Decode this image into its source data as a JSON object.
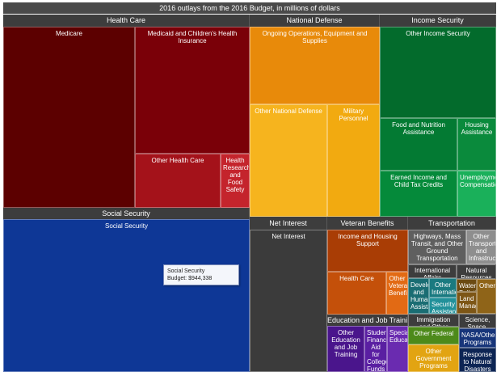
{
  "chart_data": {
    "type": "treemap",
    "title": "2016 outlays from the 2016 Budget, in millions of dollars",
    "categories": [
      {
        "name": "Health Care",
        "children": [
          "Medicare",
          "Medicaid and Children's Health Insurance",
          "Other Health Care",
          "Health Research and Food Safety"
        ]
      },
      {
        "name": "National Defense",
        "children": [
          "Ongoing Operations, Equipment and Supplies",
          "Other National Defense",
          "Military Personnel"
        ]
      },
      {
        "name": "Income Security",
        "children": [
          "Other Income Security",
          "Food and Nutrition Assistance",
          "Housing Assistance",
          "Earned Income and Child Tax Credits",
          "Unemployment Compensation"
        ]
      },
      {
        "name": "Social Security",
        "children": [
          "Social Security"
        ]
      },
      {
        "name": "Net Interest",
        "children": [
          "Net Interest"
        ]
      },
      {
        "name": "Veteran Benefits",
        "children": [
          "Income and Housing Support",
          "Health Care",
          "Other Veteran Benefits"
        ]
      },
      {
        "name": "Transportation",
        "children": [
          "Highways, Mass Transit, and Other Ground Transportation",
          "Other Transportation and Infrastructure"
        ]
      },
      {
        "name": "Education and Job Training",
        "children": [
          "Other Education and Job Training",
          "Student Financial Aid for College, Funds for School",
          "Special Education"
        ]
      },
      {
        "name": "International Affairs",
        "children": [
          "Development and Humanitarian Assistance",
          "Other International Affairs",
          "Security Assistance"
        ]
      },
      {
        "name": "Natural Resources and Environment",
        "children": [
          "Water, Pollution Control",
          "Land Management",
          "Other"
        ]
      },
      {
        "name": "Immigration and Other Federal Programs",
        "children": [
          "Immigration and Other Federal",
          "Other Government Programs"
        ]
      },
      {
        "name": "Science, Space, and Technology",
        "children": [
          "NASA/Other Programs",
          "Response to Natural Disasters"
        ]
      }
    ],
    "tooltip": {
      "label": "Social Security",
      "value_text": "Budget: $944,338",
      "value": 944338
    }
  },
  "tiles": {
    "medicare": "Medicare",
    "medicaid": "Medicaid and Children's Health Insurance",
    "other_health": "Other Health Care",
    "health_research": "Health Research and Food Safety",
    "ongoing_ops": "Ongoing Operations, Equipment and Supplies",
    "other_defense": "Other National Defense",
    "military_personnel": "Military Personnel",
    "other_income": "Other Income Security",
    "food_nutrition": "Food and Nutrition Assistance",
    "housing": "Housing Assistance",
    "eitc": "Earned Income and Child Tax Credits",
    "unemployment": "Unemployment Compensation",
    "social_security": "Social Security",
    "net_interest": "Net Interest",
    "vet_income": "Income and Housing Support",
    "vet_health": "Health Care",
    "vet_other": "Other Veteran Benefits",
    "highways": "Highways, Mass Transit, and Other Ground Transportation",
    "other_transport": "Other Transportation and Infrastructure",
    "intl_affairs": "International Affairs",
    "intl_dev": "Development and Humanitarian Assistance",
    "intl_other": "Other International Affairs",
    "intl_security": "Security Assistance",
    "natural_resources": "Natural Resources",
    "water": "Water, Pollution Control",
    "land": "Land Management",
    "nr_other": "Other",
    "edu_other": "Other Education and Job Training",
    "student_aid": "Student Financial Aid for College, Funds for School",
    "special_edu": "Special Education",
    "immigration": "Immigration and Other Federal",
    "imm_other_federal": "Other Federal",
    "imm_other_gov": "Other Government Programs",
    "science": "Science, Space, and Technology",
    "nasa": "NASA/Other Programs",
    "natural_disasters": "Response to Natural Disasters"
  },
  "headers": {
    "health_care": "Health Care",
    "national_defense": "National Defense",
    "income_security": "Income Security",
    "social_security": "Social Security",
    "net_interest": "Net Interest",
    "veteran_benefits": "Veteran Benefits",
    "transportation": "Transportation",
    "education": "Education and Job Training",
    "immigration": "Immigration and Other Federal Programs",
    "science": "Science, Space, and Technology"
  },
  "colors": {
    "health_dark": "#5c0000",
    "health_mid": "#7a0008",
    "health_light": "#a4121a",
    "health_research": "#c4242c",
    "defense_main": "#e88a0a",
    "defense_light": "#f6b41e",
    "income_main": "#036b2c",
    "income_mid": "#0a8a3c",
    "income_light": "#1ab05a",
    "social_security": "#0e3796",
    "net_interest": "#3b3b3b",
    "vet_main": "#a93d05",
    "vet_mid": "#c4500a",
    "vet_light": "#e26a14",
    "transport": "#5f5f5f",
    "transport_light": "#8e8e8e",
    "intl": "#1a7a80",
    "edu": "#4a158c",
    "edu_light": "#6a2bb0",
    "accent_header": "#3d3d3d"
  }
}
